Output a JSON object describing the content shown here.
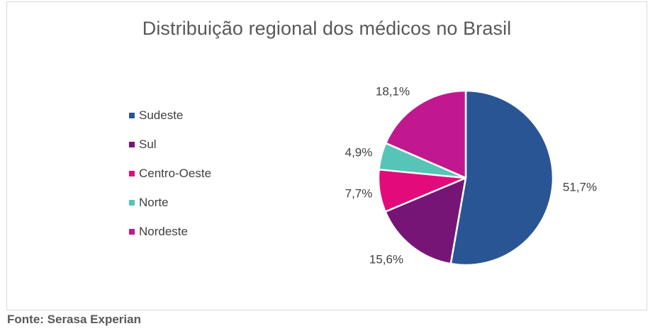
{
  "chart_data": {
    "type": "pie",
    "title": "Distribuição regional dos médicos no Brasil",
    "categories": [
      "Sudeste",
      "Sul",
      "Centro-Oeste",
      "Norte",
      "Nordeste"
    ],
    "values": [
      51.7,
      15.6,
      7.7,
      4.9,
      18.1
    ],
    "value_labels": [
      "51,7%",
      "15,6%",
      "7,7%",
      "4,9%",
      "18,1%"
    ],
    "colors": [
      "#2a5594",
      "#771577",
      "#e30b7c",
      "#56c5b8",
      "#c1188f"
    ],
    "legend_position": "left"
  },
  "source_note": "Fonte: Serasa Experian"
}
